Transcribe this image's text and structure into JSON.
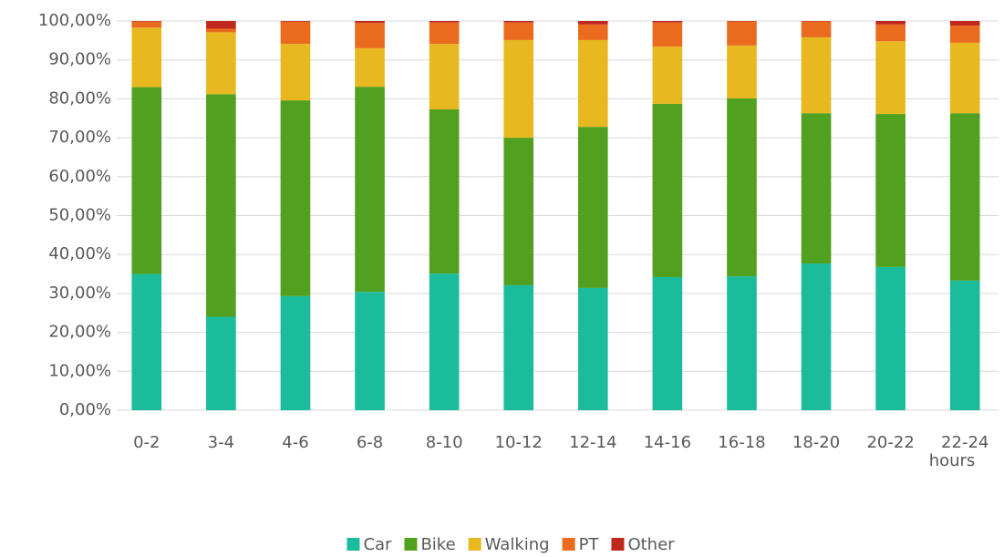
{
  "chart_data": {
    "type": "stacked_bar",
    "x_label": "hours",
    "categories": [
      "0-2",
      "3-4",
      "4-6",
      "6-8",
      "8-10",
      "10-12",
      "12-14",
      "14-16",
      "16-18",
      "18-20",
      "20-22",
      "22-24"
    ],
    "series": [
      {
        "name": "Car",
        "color": "#1abc9c",
        "values": [
          35.0,
          24.0,
          29.3,
          30.4,
          35.1,
          32.1,
          31.4,
          34.2,
          34.4,
          37.7,
          36.8,
          33.3
        ]
      },
      {
        "name": "Bike",
        "color": "#52a020",
        "values": [
          48.0,
          57.2,
          50.3,
          52.7,
          42.2,
          37.9,
          41.4,
          44.5,
          45.7,
          38.6,
          39.3,
          43.0
        ]
      },
      {
        "name": "Walking",
        "color": "#e8b820",
        "values": [
          15.3,
          15.9,
          14.5,
          9.9,
          16.8,
          25.1,
          22.3,
          14.7,
          13.6,
          19.5,
          18.7,
          18.1
        ]
      },
      {
        "name": "PT",
        "color": "#ea6b1e",
        "values": [
          1.6,
          0.9,
          5.7,
          6.5,
          5.5,
          4.5,
          4.0,
          6.2,
          6.2,
          4.1,
          4.3,
          4.4
        ]
      },
      {
        "name": "Other",
        "color": "#c0281e",
        "values": [
          0.1,
          2.0,
          0.2,
          0.5,
          0.4,
          0.4,
          0.9,
          0.4,
          0.1,
          0.1,
          0.9,
          1.2
        ]
      }
    ],
    "ylim": [
      0,
      100
    ],
    "yticks": [
      {
        "value": 0,
        "label": "0,00%"
      },
      {
        "value": 10,
        "label": "10,00%"
      },
      {
        "value": 20,
        "label": "20,00%"
      },
      {
        "value": 30,
        "label": "30,00%"
      },
      {
        "value": 40,
        "label": "40,00%"
      },
      {
        "value": 50,
        "label": "50,00%"
      },
      {
        "value": 60,
        "label": "60,00%"
      },
      {
        "value": 70,
        "label": "70,00%"
      },
      {
        "value": 80,
        "label": "80,00%"
      },
      {
        "value": 90,
        "label": "90,00%"
      },
      {
        "value": 100,
        "label": "100,00%"
      }
    ],
    "grid": true,
    "legend": "bottom"
  }
}
